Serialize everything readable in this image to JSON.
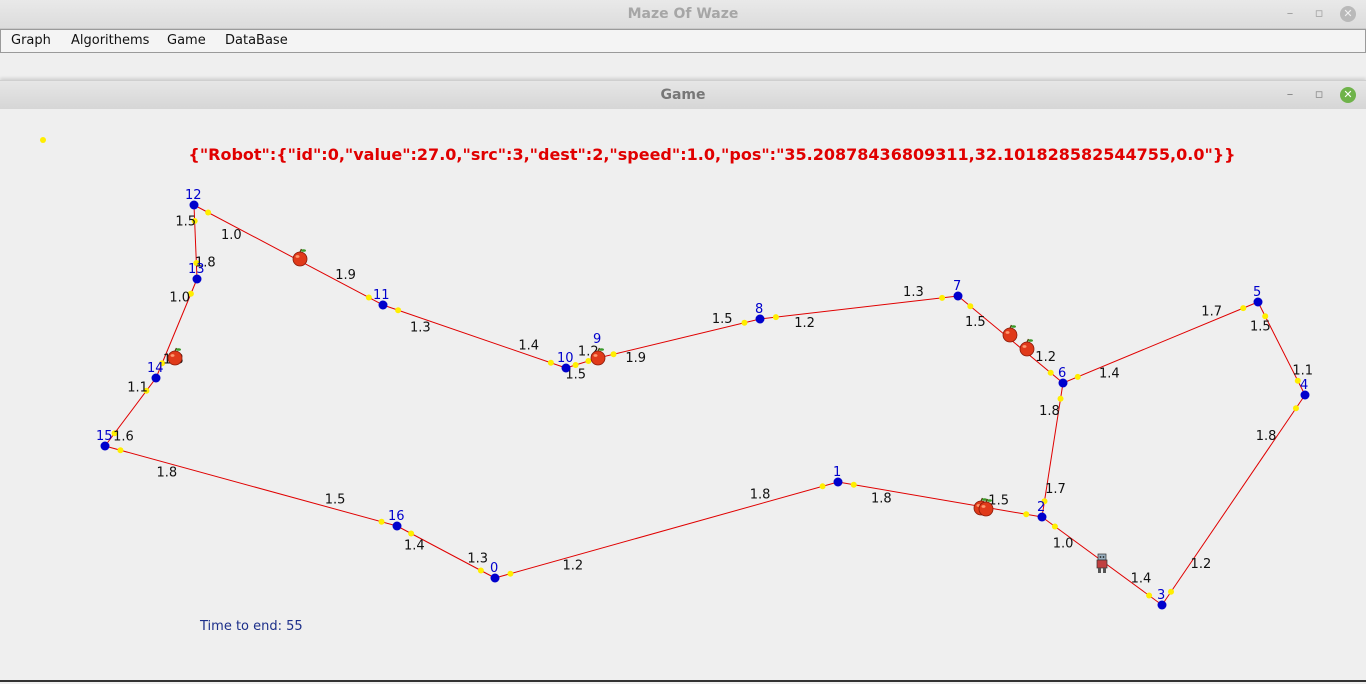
{
  "window": {
    "title": "Maze Of Waze",
    "minimize_glyph": "–",
    "restore_glyph": "▫",
    "close_glyph": "✕"
  },
  "menu": {
    "items": [
      "Graph",
      "Algorithems",
      "Game",
      "DataBase"
    ]
  },
  "game_window": {
    "title": "Game",
    "minimize_glyph": "–",
    "restore_glyph": "▫",
    "close_glyph": "✕"
  },
  "game": {
    "robot_json": "{\"Robot\":{\"id\":0,\"value\":27.0,\"src\":3,\"dest\":2,\"speed\":1.0,\"pos\":\"35.20878436809311,32.101828582544755,0.0\"}}",
    "time_to_end": "Time to end: 55",
    "colors": {
      "edge": "#e00000",
      "node": "#0000cc",
      "node_label": "#0000cc",
      "marker": "#ffee00",
      "json_text": "#e00000",
      "weight_text": "#111111"
    },
    "node_labels": [
      "0",
      "1",
      "2",
      "3",
      "4",
      "5",
      "6",
      "7",
      "8",
      "9",
      "10",
      "11",
      "12",
      "13",
      "14",
      "15",
      "16"
    ],
    "edges": [
      {
        "from": "0",
        "to": "1",
        "label": "1.2"
      },
      {
        "from": "0",
        "to": "16",
        "label": "1.3"
      },
      {
        "from": "1",
        "to": "2",
        "label": "1.8"
      },
      {
        "from": "1",
        "to": "0",
        "label": "1.8"
      },
      {
        "from": "2",
        "to": "1",
        "label": "1.5"
      },
      {
        "from": "2",
        "to": "3",
        "label": "1.0"
      },
      {
        "from": "2",
        "to": "6",
        "label": "1.7"
      },
      {
        "from": "3",
        "to": "2",
        "label": "1.4"
      },
      {
        "from": "3",
        "to": "4",
        "label": "1.2"
      },
      {
        "from": "4",
        "to": "3",
        "label": "1.8"
      },
      {
        "from": "4",
        "to": "5",
        "label": "1.1"
      },
      {
        "from": "5",
        "to": "4",
        "label": "1.5"
      },
      {
        "from": "5",
        "to": "6",
        "label": "1.7"
      },
      {
        "from": "6",
        "to": "5",
        "label": "1.4"
      },
      {
        "from": "6",
        "to": "2",
        "label": "1.8"
      },
      {
        "from": "6",
        "to": "7",
        "label": "1.2"
      },
      {
        "from": "7",
        "to": "6",
        "label": "1.5"
      },
      {
        "from": "7",
        "to": "8",
        "label": "1.3"
      },
      {
        "from": "8",
        "to": "7",
        "label": "1.2"
      },
      {
        "from": "8",
        "to": "9",
        "label": "1.5"
      },
      {
        "from": "9",
        "to": "8",
        "label": "1.9"
      },
      {
        "from": "9",
        "to": "10",
        "label": "1.2"
      },
      {
        "from": "10",
        "to": "9",
        "label": "1.5"
      },
      {
        "from": "10",
        "to": "11",
        "label": "1.4"
      },
      {
        "from": "11",
        "to": "10",
        "label": "1.3"
      },
      {
        "from": "11",
        "to": "12",
        "label": "1.9"
      },
      {
        "from": "12",
        "to": "11",
        "label": "1.0"
      },
      {
        "from": "12",
        "to": "13",
        "label": "1.5"
      },
      {
        "from": "13",
        "to": "12",
        "label": "1.8"
      },
      {
        "from": "13",
        "to": "14",
        "label": "1.0"
      },
      {
        "from": "14",
        "to": "13",
        "label": "1.3"
      },
      {
        "from": "14",
        "to": "15",
        "label": "1.1"
      },
      {
        "from": "15",
        "to": "14",
        "label": "1.6"
      },
      {
        "from": "15",
        "to": "16",
        "label": "1.8"
      },
      {
        "from": "16",
        "to": "15",
        "label": "1.5"
      },
      {
        "from": "16",
        "to": "0",
        "label": "1.4"
      }
    ],
    "fruit_count": 7,
    "robot_count": 1
  }
}
